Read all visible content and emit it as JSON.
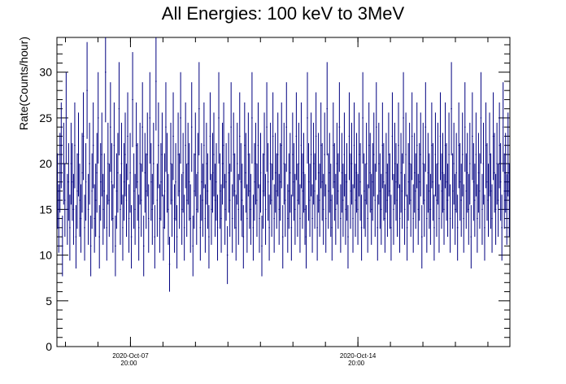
{
  "chart_data": {
    "type": "scatter",
    "title": "All Energies:  100 keV to 3MeV",
    "ylabel": "Rate(Counts/hour)",
    "xlabel": "",
    "ylim": [
      0,
      33.8
    ],
    "yticks": [
      0,
      5,
      10,
      15,
      20,
      25,
      30
    ],
    "xticks": [
      {
        "line1": "2020-Oct-07",
        "line2": "20:00",
        "day": 7
      },
      {
        "line1": "2020-Oct-14",
        "line2": "20:00",
        "day": 14
      }
    ],
    "xlim_days": [
      5.57,
      19.51
    ],
    "series_color": "#000080",
    "series": [
      {
        "x_start": "2020-Oct-05 14:00",
        "x_step_hours": 1,
        "values": [
          17,
          14,
          19,
          22,
          11,
          20,
          16,
          25,
          15,
          18,
          13,
          20,
          18,
          15,
          22,
          12,
          17,
          21,
          16,
          14,
          19,
          23,
          13,
          18,
          28,
          15,
          20,
          11,
          17,
          22,
          14,
          16,
          19,
          25,
          12,
          18,
          21,
          15,
          17,
          30,
          13,
          20,
          16,
          24,
          18,
          14,
          22,
          11,
          17,
          19,
          26,
          15,
          20,
          13,
          18,
          21,
          16,
          23,
          14,
          19,
          12,
          27,
          17,
          15,
          22,
          18,
          13,
          20,
          16,
          24,
          11,
          19,
          17,
          21,
          14,
          25,
          18,
          15,
          20,
          12,
          29,
          16,
          22,
          14,
          18,
          21,
          13,
          17,
          24,
          19,
          15,
          9,
          20,
          16,
          23,
          14,
          18,
          12,
          21,
          17,
          25,
          15,
          19,
          13,
          22,
          16,
          20,
          18,
          14,
          24,
          11,
          17,
          21,
          15,
          19,
          26,
          13,
          18,
          16,
          22,
          14,
          20,
          17,
          12,
          23,
          15,
          19,
          21,
          16,
          18,
          13,
          25,
          17,
          14,
          20,
          22,
          15,
          18,
          10,
          19,
          16,
          24,
          14,
          21,
          17,
          13,
          20,
          15,
          23,
          18,
          16,
          12,
          22,
          19,
          14,
          21,
          17,
          15,
          25,
          13,
          18,
          20,
          16,
          22,
          14,
          19,
          11,
          17,
          21,
          15,
          24,
          18,
          13,
          20,
          16,
          23,
          14,
          19,
          17,
          21,
          15,
          18,
          22,
          12,
          20,
          16,
          24,
          14,
          17,
          19,
          13,
          21,
          18,
          15,
          23,
          16,
          20,
          14,
          22,
          17,
          19,
          15,
          12,
          25,
          18,
          16,
          21,
          14,
          20,
          17,
          23,
          13,
          19,
          16,
          22,
          18,
          15,
          21,
          14,
          26,
          17,
          19,
          16,
          13,
          22,
          18,
          15,
          20,
          17,
          24,
          14,
          19,
          16,
          21,
          15,
          18,
          12,
          23,
          17,
          20,
          14,
          22,
          16,
          19,
          15,
          21,
          18,
          13,
          25,
          17,
          16,
          20,
          14,
          22,
          19,
          15,
          18,
          21,
          16,
          24,
          13,
          20,
          17,
          15,
          22,
          18,
          14,
          19,
          16,
          21,
          17,
          13,
          23,
          15,
          20,
          18,
          16,
          22,
          14,
          19,
          17,
          25,
          15,
          21,
          13,
          18,
          20,
          16,
          23,
          14,
          19,
          17,
          22,
          15,
          18,
          21,
          12,
          20,
          16,
          24,
          14,
          19,
          17,
          15,
          22,
          18,
          13,
          21,
          16,
          20,
          14,
          23,
          17,
          19,
          15,
          22,
          18,
          16,
          21,
          14,
          26,
          17,
          20,
          15,
          19,
          13,
          22,
          18,
          16,
          21,
          14,
          24,
          17,
          19,
          15,
          20,
          12,
          23,
          18,
          16,
          21,
          14,
          19,
          17,
          25,
          15,
          20,
          13,
          22,
          18,
          16,
          21,
          17,
          14,
          23,
          19,
          15,
          20,
          16,
          22,
          18,
          13,
          24,
          17,
          19,
          15,
          21,
          16
        ]
      }
    ]
  }
}
